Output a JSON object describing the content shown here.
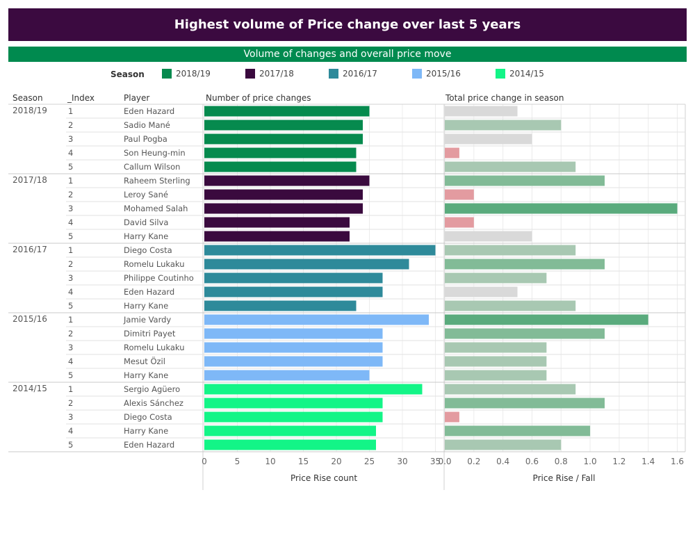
{
  "header": {
    "title": "Highest volume of Price change over last 5 years",
    "subtitle": "Volume of changes and overall price move"
  },
  "legend": {
    "title": "Season",
    "items": [
      {
        "label": "2018/19",
        "color": "#068a4e"
      },
      {
        "label": "2017/18",
        "color": "#3a0a3e"
      },
      {
        "label": "2016/17",
        "color": "#2e8a9a"
      },
      {
        "label": "2015/16",
        "color": "#7eb8f7"
      },
      {
        "label": "2014/15",
        "color": "#13f587"
      }
    ]
  },
  "table": {
    "col_season": "Season",
    "col_index": "_Index",
    "col_player": "Player",
    "col_count": "Number of price changes",
    "col_total": "Total price change in season"
  },
  "chart_data": [
    {
      "type": "bar",
      "orientation": "horizontal",
      "title": "Number of price changes",
      "xlabel": "Price Rise count",
      "xlim": [
        0,
        36
      ],
      "xticks": [
        0,
        5,
        10,
        15,
        20,
        25,
        30,
        35
      ],
      "grid": true,
      "groups": [
        {
          "season": "2018/19",
          "color": "#068a4e",
          "rows": [
            {
              "index": "1",
              "player": "Eden Hazard",
              "value": 25
            },
            {
              "index": "2",
              "player": "Sadio Mané",
              "value": 24
            },
            {
              "index": "3",
              "player": "Paul Pogba",
              "value": 24
            },
            {
              "index": "4",
              "player": "Son Heung-min",
              "value": 23
            },
            {
              "index": "5",
              "player": "Callum Wilson",
              "value": 23
            }
          ]
        },
        {
          "season": "2017/18",
          "color": "#3a0a3e",
          "rows": [
            {
              "index": "1",
              "player": "Raheem Sterling",
              "value": 25
            },
            {
              "index": "2",
              "player": "Leroy Sané",
              "value": 24
            },
            {
              "index": "3",
              "player": "Mohamed Salah",
              "value": 24
            },
            {
              "index": "4",
              "player": "David Silva",
              "value": 22
            },
            {
              "index": "5",
              "player": "Harry Kane",
              "value": 22
            }
          ]
        },
        {
          "season": "2016/17",
          "color": "#2e8a9a",
          "rows": [
            {
              "index": "1",
              "player": "Diego Costa",
              "value": 35
            },
            {
              "index": "2",
              "player": "Romelu Lukaku",
              "value": 31
            },
            {
              "index": "3",
              "player": "Philippe Coutinho",
              "value": 27
            },
            {
              "index": "4",
              "player": "Eden Hazard",
              "value": 27
            },
            {
              "index": "5",
              "player": "Harry Kane",
              "value": 23
            }
          ]
        },
        {
          "season": "2015/16",
          "color": "#7eb8f7",
          "rows": [
            {
              "index": "1",
              "player": "Jamie Vardy",
              "value": 34
            },
            {
              "index": "2",
              "player": "Dimitri Payet",
              "value": 27
            },
            {
              "index": "3",
              "player": "Romelu Lukaku",
              "value": 27
            },
            {
              "index": "4",
              "player": "Mesut Özil",
              "value": 27
            },
            {
              "index": "5",
              "player": "Harry Kane",
              "value": 25
            }
          ]
        },
        {
          "season": "2014/15",
          "color": "#13f587",
          "rows": [
            {
              "index": "1",
              "player": "Sergio Agüero",
              "value": 33
            },
            {
              "index": "2",
              "player": "Alexis Sánchez",
              "value": 27
            },
            {
              "index": "3",
              "player": "Diego Costa",
              "value": 27
            },
            {
              "index": "4",
              "player": "Harry Kane",
              "value": 26
            },
            {
              "index": "5",
              "player": "Eden Hazard",
              "value": 26
            }
          ]
        }
      ]
    },
    {
      "type": "bar",
      "orientation": "horizontal",
      "title": "Total price change in season",
      "xlabel": "Price Rise / Fall",
      "xlim": [
        0,
        1.65
      ],
      "xticks": [
        "0.0",
        "0.2",
        "0.4",
        "0.6",
        "0.8",
        "1.0",
        "1.2",
        "1.4",
        "1.6"
      ],
      "grid": true,
      "values_by_row": [
        0.5,
        0.8,
        0.6,
        0.1,
        0.9,
        1.1,
        0.2,
        1.6,
        0.2,
        0.6,
        0.9,
        1.1,
        0.7,
        0.5,
        0.9,
        1.4,
        1.1,
        0.7,
        0.7,
        0.7,
        0.9,
        1.1,
        0.1,
        1.0,
        0.8
      ],
      "colors_by_row": [
        "#d9d9d9",
        "#a8c8b2",
        "#d9d9d9",
        "#e39ba0",
        "#a8c8b2",
        "#82bb97",
        "#e39ba0",
        "#5aab7d",
        "#e39ba0",
        "#d9d9d9",
        "#a8c8b2",
        "#82bb97",
        "#a8c8b2",
        "#d9d9d9",
        "#a8c8b2",
        "#5aab7d",
        "#82bb97",
        "#a8c8b2",
        "#a8c8b2",
        "#a8c8b2",
        "#a8c8b2",
        "#82bb97",
        "#e39ba0",
        "#82bb97",
        "#a8c8b2"
      ]
    }
  ]
}
